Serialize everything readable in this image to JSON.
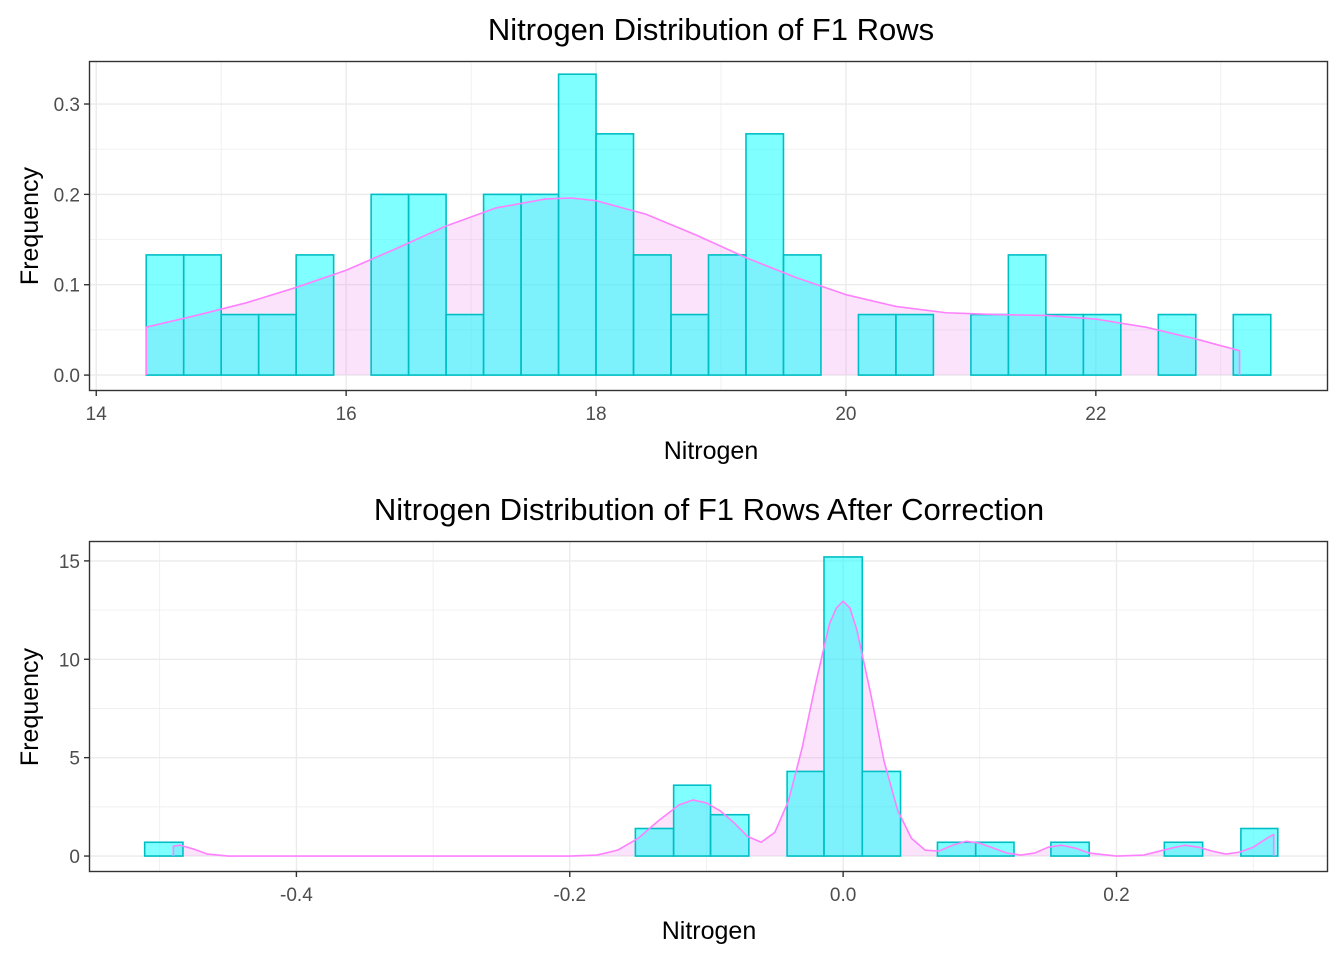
{
  "colors": {
    "bar_fill": "#00FFFF",
    "bar_stroke": "#00BFC4",
    "density_fill": "#EE82EE",
    "density_stroke": "#FF80FF",
    "grid": "#EBEBEB",
    "border": "#333333"
  },
  "chart_data": [
    {
      "type": "bar",
      "subtype": "histogram_with_density",
      "title": "Nitrogen Distribution of F1 Rows",
      "xlabel": "Nitrogen",
      "ylabel": "Frequency",
      "xlim": [
        13.95,
        23.85
      ],
      "ylim": [
        -0.0165,
        0.3465
      ],
      "x_ticks": [
        14,
        16,
        18,
        20,
        22
      ],
      "x_tick_labels": [
        "14",
        "16",
        "18",
        "20",
        "22"
      ],
      "y_ticks": [
        0.0,
        0.1,
        0.2,
        0.3
      ],
      "y_tick_labels": [
        "0.0",
        "0.1",
        "0.2",
        "0.3"
      ],
      "grid": true,
      "legend": "none",
      "bins": [
        {
          "x0": 14.4,
          "x1": 14.7,
          "value": 0.133
        },
        {
          "x0": 14.7,
          "x1": 15.0,
          "value": 0.133
        },
        {
          "x0": 15.0,
          "x1": 15.3,
          "value": 0.067
        },
        {
          "x0": 15.3,
          "x1": 15.6,
          "value": 0.067
        },
        {
          "x0": 15.6,
          "x1": 15.9,
          "value": 0.133
        },
        {
          "x0": 16.2,
          "x1": 16.5,
          "value": 0.2
        },
        {
          "x0": 16.5,
          "x1": 16.8,
          "value": 0.2
        },
        {
          "x0": 16.8,
          "x1": 17.1,
          "value": 0.067
        },
        {
          "x0": 17.1,
          "x1": 17.4,
          "value": 0.2
        },
        {
          "x0": 17.4,
          "x1": 17.7,
          "value": 0.2
        },
        {
          "x0": 17.7,
          "x1": 18.0,
          "value": 0.333
        },
        {
          "x0": 18.0,
          "x1": 18.3,
          "value": 0.267
        },
        {
          "x0": 18.3,
          "x1": 18.6,
          "value": 0.133
        },
        {
          "x0": 18.6,
          "x1": 18.9,
          "value": 0.067
        },
        {
          "x0": 18.9,
          "x1": 19.2,
          "value": 0.133
        },
        {
          "x0": 19.2,
          "x1": 19.5,
          "value": 0.267
        },
        {
          "x0": 19.5,
          "x1": 19.8,
          "value": 0.133
        },
        {
          "x0": 20.1,
          "x1": 20.4,
          "value": 0.067
        },
        {
          "x0": 20.4,
          "x1": 20.7,
          "value": 0.067
        },
        {
          "x0": 21.0,
          "x1": 21.3,
          "value": 0.067
        },
        {
          "x0": 21.3,
          "x1": 21.6,
          "value": 0.133
        },
        {
          "x0": 21.6,
          "x1": 21.9,
          "value": 0.067
        },
        {
          "x0": 21.9,
          "x1": 22.2,
          "value": 0.067
        },
        {
          "x0": 22.5,
          "x1": 22.8,
          "value": 0.067
        },
        {
          "x0": 23.1,
          "x1": 23.4,
          "value": 0.067
        }
      ],
      "density": {
        "x": [
          14.4,
          14.8,
          15.2,
          15.6,
          16.0,
          16.4,
          16.8,
          17.2,
          17.6,
          17.8,
          18.0,
          18.4,
          18.8,
          19.2,
          19.6,
          20.0,
          20.4,
          20.8,
          21.2,
          21.6,
          22.0,
          22.4,
          22.8,
          23.15
        ],
        "y": [
          0.053,
          0.066,
          0.08,
          0.097,
          0.116,
          0.14,
          0.165,
          0.185,
          0.195,
          0.196,
          0.193,
          0.178,
          0.155,
          0.13,
          0.108,
          0.089,
          0.076,
          0.069,
          0.067,
          0.066,
          0.062,
          0.053,
          0.04,
          0.027
        ]
      }
    },
    {
      "type": "bar",
      "subtype": "histogram_with_density",
      "title": "Nitrogen Distribution of F1 Rows After Correction",
      "xlabel": "Nitrogen",
      "ylabel": "Frequency",
      "xlim": [
        -0.551,
        0.354
      ],
      "ylim": [
        -0.76,
        15.96
      ],
      "x_ticks": [
        -0.4,
        -0.2,
        0.0,
        0.2
      ],
      "x_tick_labels": [
        "-0.4",
        "-0.2",
        "0.0",
        "0.2"
      ],
      "y_ticks": [
        0,
        5,
        10,
        15
      ],
      "y_tick_labels": [
        "0",
        "5",
        "10",
        "15"
      ],
      "grid": true,
      "legend": "none",
      "bins": [
        {
          "x0": -0.511,
          "x1": -0.483,
          "value": 0.7
        },
        {
          "x0": -0.152,
          "x1": -0.124,
          "value": 1.4
        },
        {
          "x0": -0.124,
          "x1": -0.097,
          "value": 3.6
        },
        {
          "x0": -0.097,
          "x1": -0.069,
          "value": 2.1
        },
        {
          "x0": -0.041,
          "x1": -0.014,
          "value": 4.3
        },
        {
          "x0": -0.014,
          "x1": 0.014,
          "value": 15.2
        },
        {
          "x0": 0.014,
          "x1": 0.042,
          "value": 4.3
        },
        {
          "x0": 0.069,
          "x1": 0.097,
          "value": 0.7
        },
        {
          "x0": 0.097,
          "x1": 0.125,
          "value": 0.7
        },
        {
          "x0": 0.152,
          "x1": 0.18,
          "value": 0.7
        },
        {
          "x0": 0.235,
          "x1": 0.263,
          "value": 0.7
        },
        {
          "x0": 0.291,
          "x1": 0.318,
          "value": 1.4
        }
      ],
      "density": {
        "x": [
          -0.49,
          -0.485,
          -0.475,
          -0.465,
          -0.45,
          -0.3,
          -0.2,
          -0.18,
          -0.165,
          -0.15,
          -0.135,
          -0.12,
          -0.11,
          -0.1,
          -0.09,
          -0.08,
          -0.07,
          -0.06,
          -0.05,
          -0.04,
          -0.03,
          -0.02,
          -0.01,
          -0.005,
          0.0,
          0.005,
          0.01,
          0.02,
          0.03,
          0.04,
          0.05,
          0.06,
          0.07,
          0.08,
          0.09,
          0.1,
          0.11,
          0.12,
          0.13,
          0.14,
          0.15,
          0.16,
          0.17,
          0.18,
          0.2,
          0.22,
          0.24,
          0.25,
          0.26,
          0.27,
          0.28,
          0.29,
          0.3,
          0.31,
          0.315
        ],
        "y": [
          0.5,
          0.55,
          0.35,
          0.1,
          0.0,
          0.0,
          0.0,
          0.05,
          0.3,
          0.9,
          1.8,
          2.6,
          2.85,
          2.7,
          2.3,
          1.7,
          1.0,
          0.7,
          1.2,
          2.8,
          5.5,
          8.8,
          11.8,
          12.6,
          12.95,
          12.6,
          11.5,
          8.3,
          4.8,
          2.3,
          0.9,
          0.3,
          0.25,
          0.55,
          0.75,
          0.65,
          0.4,
          0.15,
          0.05,
          0.15,
          0.45,
          0.55,
          0.4,
          0.15,
          0.0,
          0.05,
          0.4,
          0.55,
          0.45,
          0.25,
          0.1,
          0.2,
          0.45,
          0.9,
          1.1
        ]
      }
    }
  ]
}
